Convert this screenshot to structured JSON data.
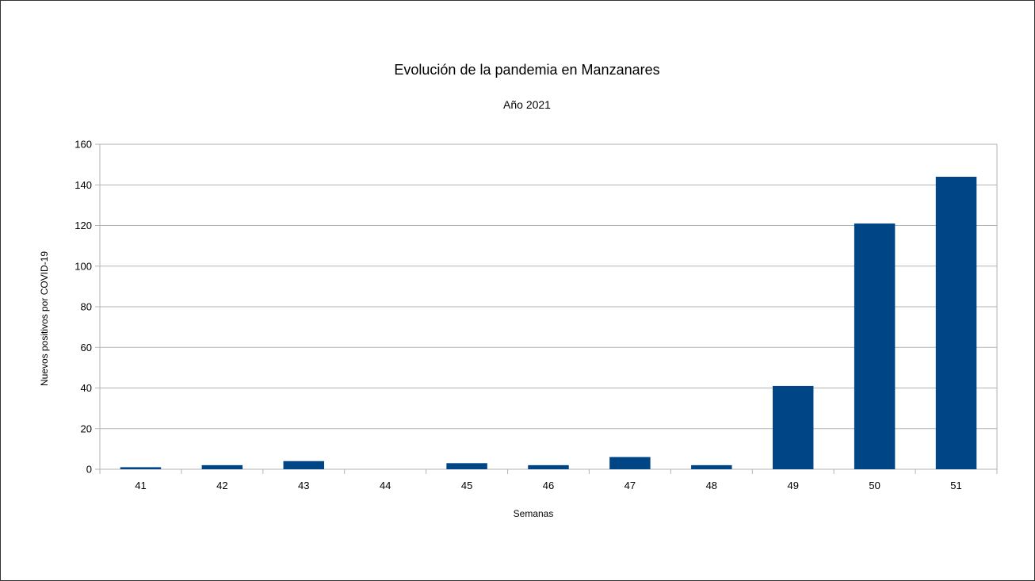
{
  "chart_data": {
    "type": "bar",
    "title": "Evolución de la pandemia en Manzanares",
    "subtitle": "Año 2021",
    "xlabel": "Semanas",
    "ylabel": "Nuevos positivos por COVID-19",
    "categories": [
      "41",
      "42",
      "43",
      "44",
      "45",
      "46",
      "47",
      "48",
      "49",
      "50",
      "51"
    ],
    "values": [
      1,
      2,
      4,
      0,
      3,
      2,
      6,
      2,
      41,
      121,
      144
    ],
    "ylim": [
      0,
      160
    ],
    "yticks": [
      0,
      20,
      40,
      60,
      80,
      100,
      120,
      140,
      160
    ],
    "grid": true,
    "legend": "none",
    "colors": {
      "bar": "#004586",
      "grid": "#b3b3b3",
      "axis": "#b3b3b3"
    }
  }
}
